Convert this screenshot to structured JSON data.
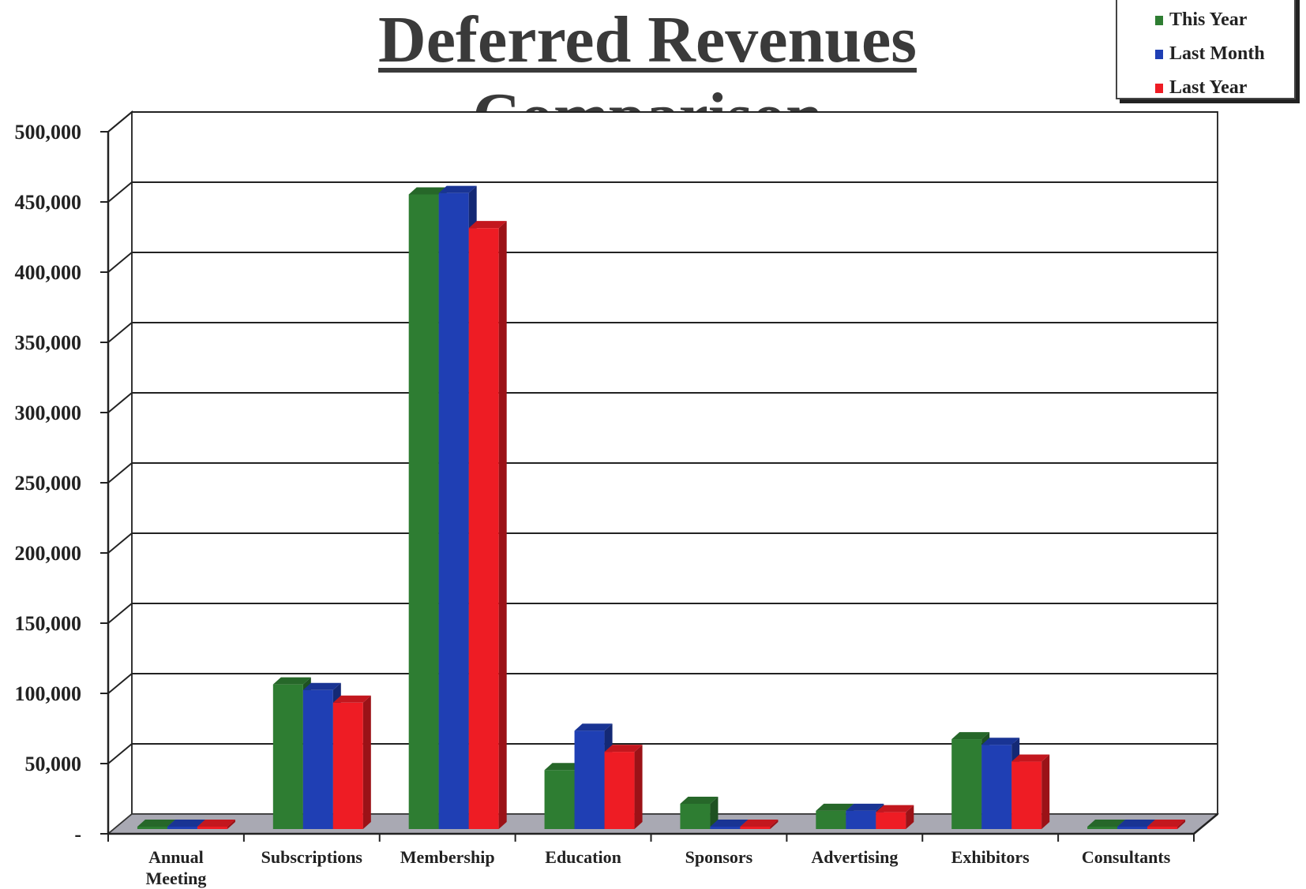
{
  "chart_data": {
    "type": "bar",
    "title": "Deferred Revenues Comparison",
    "categories": [
      "Annual Meeting",
      "Subscriptions",
      "Membership",
      "Education",
      "Sponsors",
      "Advertising",
      "Exhibitors",
      "Consultants"
    ],
    "category_lines": [
      [
        "Annual",
        "Meeting"
      ],
      [
        "Subscriptions"
      ],
      [
        "Membership"
      ],
      [
        "Education"
      ],
      [
        "Sponsors"
      ],
      [
        "Advertising"
      ],
      [
        "Exhibitors"
      ],
      [
        "Consultants"
      ]
    ],
    "series": [
      {
        "name": "This Year",
        "color": "#2e7d32",
        "values": [
          0,
          103000,
          452000,
          42000,
          18000,
          13000,
          64000,
          0
        ]
      },
      {
        "name": "Last Month",
        "color": "#1f3fb4",
        "values": [
          0,
          99000,
          453000,
          70000,
          0,
          13000,
          60000,
          0
        ]
      },
      {
        "name": "Last Year",
        "color": "#ee1c24",
        "values": [
          0,
          90000,
          428000,
          55000,
          0,
          12000,
          48000,
          0
        ]
      }
    ],
    "ylim": [
      0,
      500000
    ],
    "yticks": [
      0,
      50000,
      100000,
      150000,
      200000,
      250000,
      300000,
      350000,
      400000,
      450000,
      500000
    ],
    "ytick_labels": [
      "-",
      "50,000",
      "100,000",
      "150,000",
      "200,000",
      "250,000",
      "300,000",
      "350,000",
      "400,000",
      "450,000",
      "500,000"
    ],
    "xlabel": "",
    "ylabel": "",
    "grid": true,
    "legend_position": "top-right",
    "style": "3d-clustered-bar"
  }
}
